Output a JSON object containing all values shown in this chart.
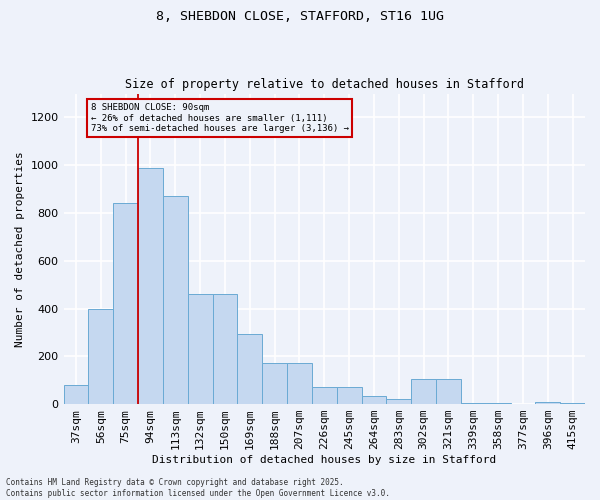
{
  "title1": "8, SHEBDON CLOSE, STAFFORD, ST16 1UG",
  "title2": "Size of property relative to detached houses in Stafford",
  "xlabel": "Distribution of detached houses by size in Stafford",
  "ylabel": "Number of detached properties",
  "categories": [
    "37sqm",
    "56sqm",
    "75sqm",
    "94sqm",
    "113sqm",
    "132sqm",
    "150sqm",
    "169sqm",
    "188sqm",
    "207sqm",
    "226sqm",
    "245sqm",
    "264sqm",
    "283sqm",
    "302sqm",
    "321sqm",
    "339sqm",
    "358sqm",
    "377sqm",
    "396sqm",
    "415sqm"
  ],
  "values": [
    80,
    400,
    840,
    990,
    870,
    460,
    460,
    295,
    170,
    170,
    70,
    70,
    35,
    20,
    105,
    105,
    5,
    5,
    0,
    10,
    5
  ],
  "bar_color": "#c5d8f0",
  "bar_edge_color": "#6aaad4",
  "background_color": "#eef2fa",
  "grid_color": "#d8dff0",
  "vline_color": "#cc0000",
  "vline_x": 3,
  "annotation_text": "8 SHEBDON CLOSE: 90sqm\n← 26% of detached houses are smaller (1,111)\n73% of semi-detached houses are larger (3,136) →",
  "annotation_box_color": "#cc0000",
  "footer": "Contains HM Land Registry data © Crown copyright and database right 2025.\nContains public sector information licensed under the Open Government Licence v3.0.",
  "ylim": [
    0,
    1300
  ],
  "yticks": [
    0,
    200,
    400,
    600,
    800,
    1000,
    1200
  ]
}
